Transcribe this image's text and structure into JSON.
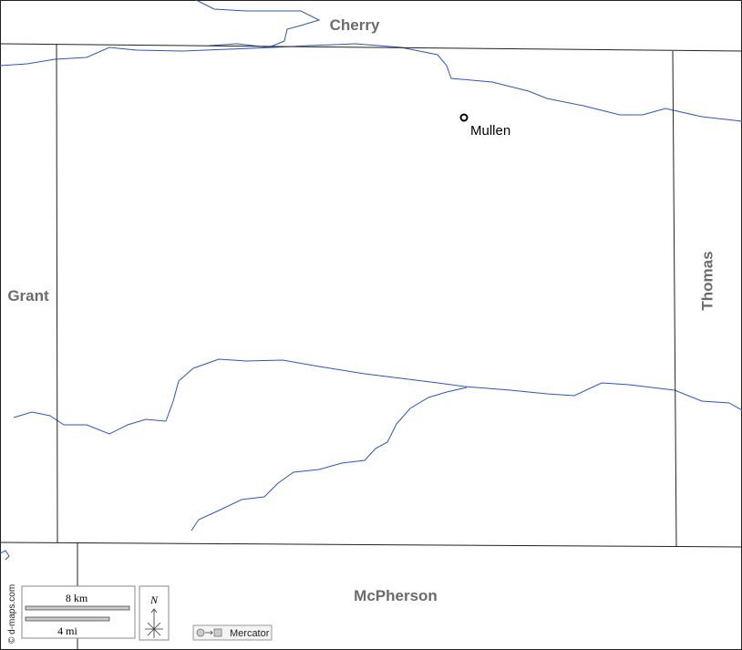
{
  "counties": [
    "Cherry",
    "Grant",
    "Thomas",
    "McPherson"
  ],
  "places": [
    {
      "label": "Mullen"
    }
  ],
  "scale": {
    "km": "8 km",
    "mi": "4 mi"
  },
  "compass": "N",
  "projection": "Mercator",
  "credit": "© d-maps.com"
}
